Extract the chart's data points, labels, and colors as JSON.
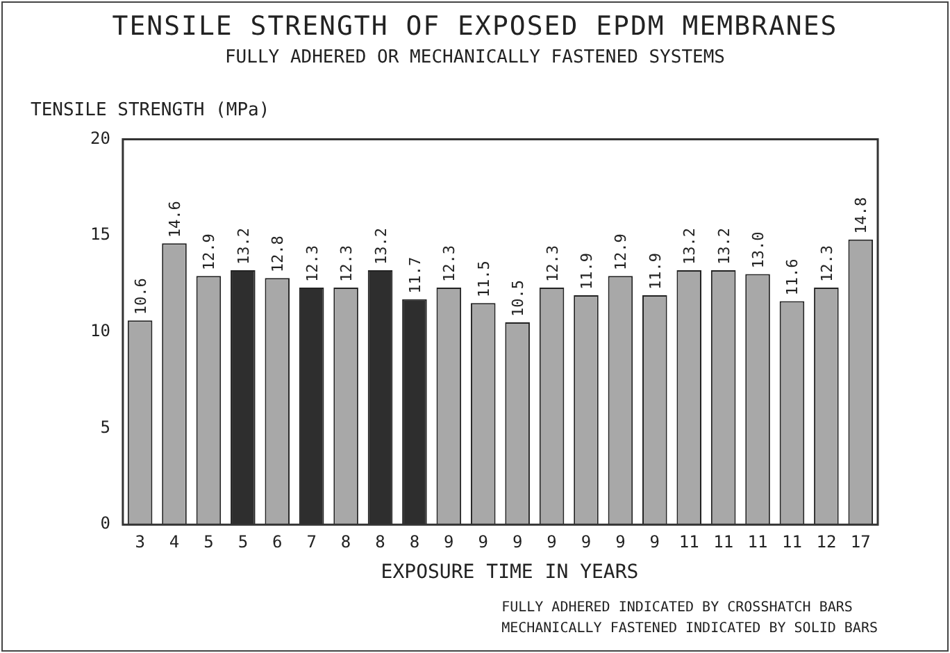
{
  "chart_data": {
    "type": "bar",
    "title": "TENSILE STRENGTH OF EXPOSED EPDM MEMBRANES",
    "subtitle": "FULLY ADHERED OR MECHANICALLY FASTENED SYSTEMS",
    "ylabel": "TENSILE STRENGTH (MPa)",
    "xlabel": "EXPOSURE TIME IN YEARS",
    "categories": [
      "3",
      "4",
      "5",
      "5",
      "6",
      "7",
      "8",
      "8",
      "8",
      "9",
      "9",
      "9",
      "9",
      "9",
      "9",
      "9",
      "11",
      "11",
      "11",
      "11",
      "12",
      "17"
    ],
    "values": [
      10.6,
      14.6,
      12.9,
      13.2,
      12.8,
      12.3,
      12.3,
      13.2,
      11.7,
      12.3,
      11.5,
      10.5,
      12.3,
      11.9,
      12.9,
      11.9,
      13.2,
      13.2,
      13.0,
      11.6,
      12.3,
      14.8
    ],
    "colors": [
      "#a8a8a8",
      "#a8a8a8",
      "#a8a8a8",
      "#2e2e2e",
      "#a8a8a8",
      "#2e2e2e",
      "#a8a8a8",
      "#2e2e2e",
      "#2e2e2e",
      "#a8a8a8",
      "#a8a8a8",
      "#a8a8a8",
      "#a8a8a8",
      "#a8a8a8",
      "#a8a8a8",
      "#a8a8a8",
      "#a8a8a8",
      "#a8a8a8",
      "#a8a8a8",
      "#a8a8a8",
      "#a8a8a8",
      "#a8a8a8"
    ],
    "ylim": [
      0,
      20
    ],
    "yticks": [
      0,
      5,
      10,
      15,
      20
    ],
    "grid": false,
    "legend": false,
    "value_labels": [
      "10.6",
      "14.6",
      "12.9",
      "13.2",
      "12.8",
      "12.3",
      "12.3",
      "13.2",
      "11.7",
      "12.3",
      "11.5",
      "10.5",
      "12.3",
      "11.9",
      "12.9",
      "11.9",
      "13.2",
      "13.2",
      "13.0",
      "11.6",
      "12.3",
      "14.8"
    ],
    "annotations": [
      "FULLY ADHERED INDICATED BY CROSSHATCH BARS",
      "MECHANICALLY FASTENED INDICATED BY SOLID BARS"
    ]
  }
}
